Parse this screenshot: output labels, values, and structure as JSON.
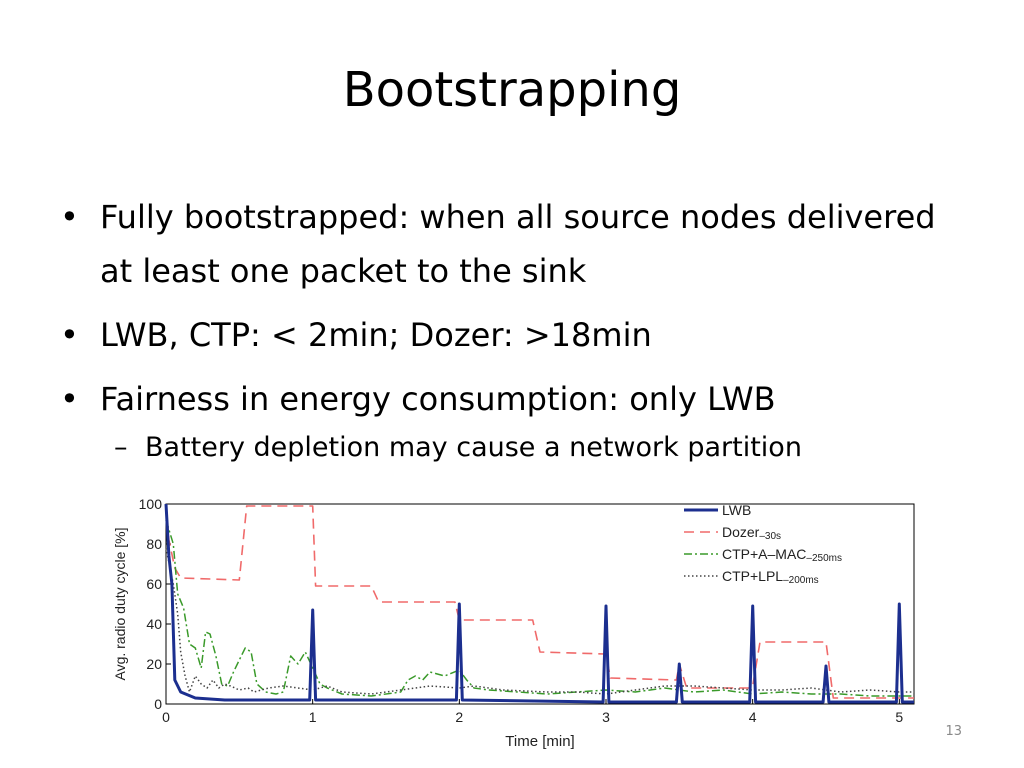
{
  "slide": {
    "title": "Bootstrapping",
    "page_number": "13",
    "bullets": [
      "Fully bootstrapped: when all source nodes delivered at least one packet to the sink",
      "LWB, CTP: < 2min; Dozer: >18min",
      "Fairness in energy consumption: only LWB"
    ],
    "sub_bullet": "Battery depletion may cause a network partition",
    "bullet_marker": "•",
    "sub_marker": "–"
  },
  "chart_data": {
    "type": "line",
    "xlabel": "Time [min]",
    "ylabel": "Avg. radio duty cycle [%]",
    "xlim": [
      0,
      5.1
    ],
    "ylim": [
      0,
      100
    ],
    "xticks": [
      "0",
      "1",
      "2",
      "3",
      "4",
      "5"
    ],
    "yticks": [
      "0",
      "20",
      "40",
      "60",
      "80",
      "100"
    ],
    "grid": false,
    "legend_position": "top-right",
    "series": [
      {
        "name": "LWB",
        "sub": "",
        "color": "#1c2f8f",
        "dash": "",
        "width": 3,
        "points": [
          [
            0,
            100
          ],
          [
            0.02,
            74
          ],
          [
            0.04,
            60
          ],
          [
            0.06,
            12
          ],
          [
            0.1,
            6
          ],
          [
            0.2,
            3
          ],
          [
            0.4,
            2
          ],
          [
            0.98,
            2
          ],
          [
            1.0,
            47
          ],
          [
            1.02,
            2
          ],
          [
            1.98,
            2
          ],
          [
            2.0,
            50
          ],
          [
            2.02,
            2
          ],
          [
            2.98,
            1
          ],
          [
            3.0,
            49
          ],
          [
            3.02,
            1
          ],
          [
            3.48,
            1
          ],
          [
            3.5,
            20
          ],
          [
            3.52,
            1
          ],
          [
            3.98,
            1
          ],
          [
            4.0,
            49
          ],
          [
            4.02,
            1
          ],
          [
            4.48,
            1
          ],
          [
            4.5,
            19
          ],
          [
            4.52,
            1
          ],
          [
            4.98,
            1
          ],
          [
            5.0,
            50
          ],
          [
            5.02,
            1
          ],
          [
            5.1,
            1
          ]
        ]
      },
      {
        "name": "Dozer",
        "sub": "–30s",
        "color": "#f06a6a",
        "dash": "10,6",
        "width": 1.6,
        "points": [
          [
            0,
            100
          ],
          [
            0.02,
            82
          ],
          [
            0.06,
            68
          ],
          [
            0.1,
            63
          ],
          [
            0.5,
            62
          ],
          [
            0.55,
            99
          ],
          [
            1.0,
            99
          ],
          [
            1.02,
            59
          ],
          [
            1.4,
            59
          ],
          [
            1.45,
            51
          ],
          [
            1.97,
            51
          ],
          [
            2.0,
            42
          ],
          [
            2.5,
            42
          ],
          [
            2.55,
            26
          ],
          [
            3.0,
            25
          ],
          [
            3.03,
            13
          ],
          [
            3.48,
            12
          ],
          [
            3.5,
            20
          ],
          [
            3.55,
            8
          ],
          [
            3.98,
            8
          ],
          [
            4.0,
            9
          ],
          [
            4.05,
            31
          ],
          [
            4.5,
            31
          ],
          [
            4.55,
            3
          ],
          [
            5.1,
            3
          ]
        ]
      },
      {
        "name": "CTP+A–MAC",
        "sub": "–250ms",
        "color": "#3a9a2a",
        "dash": "8,3,2,3",
        "width": 1.5,
        "points": [
          [
            0,
            92
          ],
          [
            0.05,
            80
          ],
          [
            0.08,
            55
          ],
          [
            0.12,
            48
          ],
          [
            0.16,
            30
          ],
          [
            0.2,
            28
          ],
          [
            0.24,
            18
          ],
          [
            0.27,
            36
          ],
          [
            0.3,
            35
          ],
          [
            0.34,
            24
          ],
          [
            0.38,
            10
          ],
          [
            0.42,
            9
          ],
          [
            0.46,
            16
          ],
          [
            0.5,
            22
          ],
          [
            0.54,
            28
          ],
          [
            0.58,
            26
          ],
          [
            0.62,
            10
          ],
          [
            0.68,
            6
          ],
          [
            0.75,
            5
          ],
          [
            0.8,
            6
          ],
          [
            0.85,
            24
          ],
          [
            0.9,
            20
          ],
          [
            0.95,
            26
          ],
          [
            1.0,
            18
          ],
          [
            1.05,
            10
          ],
          [
            1.1,
            8
          ],
          [
            1.2,
            5
          ],
          [
            1.4,
            4
          ],
          [
            1.6,
            6
          ],
          [
            1.65,
            12
          ],
          [
            1.7,
            14
          ],
          [
            1.75,
            12
          ],
          [
            1.8,
            16
          ],
          [
            1.9,
            14
          ],
          [
            2.0,
            17
          ],
          [
            2.05,
            12
          ],
          [
            2.1,
            8
          ],
          [
            2.2,
            7
          ],
          [
            2.4,
            6
          ],
          [
            2.6,
            5
          ],
          [
            2.8,
            6
          ],
          [
            3.0,
            7
          ],
          [
            3.2,
            6
          ],
          [
            3.4,
            8
          ],
          [
            3.6,
            6
          ],
          [
            3.8,
            7
          ],
          [
            4.0,
            5
          ],
          [
            4.2,
            6
          ],
          [
            4.4,
            5
          ],
          [
            4.6,
            5
          ],
          [
            4.8,
            4
          ],
          [
            5.0,
            4
          ],
          [
            5.1,
            4
          ]
        ]
      },
      {
        "name": "CTP+LPL",
        "sub": "–200ms",
        "color": "#444444",
        "dash": "1.5,2.5",
        "width": 1.5,
        "points": [
          [
            0,
            78
          ],
          [
            0.05,
            60
          ],
          [
            0.08,
            45
          ],
          [
            0.1,
            26
          ],
          [
            0.13,
            14
          ],
          [
            0.16,
            6
          ],
          [
            0.2,
            14
          ],
          [
            0.24,
            10
          ],
          [
            0.28,
            8
          ],
          [
            0.32,
            12
          ],
          [
            0.36,
            8
          ],
          [
            0.4,
            10
          ],
          [
            0.44,
            9
          ],
          [
            0.5,
            7
          ],
          [
            0.56,
            8
          ],
          [
            0.6,
            6
          ],
          [
            0.7,
            8
          ],
          [
            0.8,
            9
          ],
          [
            0.9,
            8
          ],
          [
            1.0,
            7
          ],
          [
            1.1,
            9
          ],
          [
            1.2,
            6
          ],
          [
            1.4,
            5
          ],
          [
            1.6,
            7
          ],
          [
            1.8,
            9
          ],
          [
            2.0,
            8
          ],
          [
            2.1,
            9
          ],
          [
            2.3,
            7
          ],
          [
            2.6,
            6
          ],
          [
            2.8,
            6
          ],
          [
            3.0,
            5
          ],
          [
            3.2,
            7
          ],
          [
            3.4,
            9
          ],
          [
            3.6,
            9
          ],
          [
            3.8,
            8
          ],
          [
            4.0,
            7
          ],
          [
            4.2,
            7
          ],
          [
            4.4,
            8
          ],
          [
            4.6,
            6
          ],
          [
            4.8,
            7
          ],
          [
            5.0,
            6
          ],
          [
            5.1,
            6
          ]
        ]
      }
    ]
  }
}
